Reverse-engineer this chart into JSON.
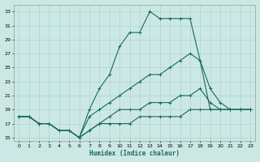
{
  "xlabel": "Humidex (Indice chaleur)",
  "bg_color": "#cce8e4",
  "line_color": "#1a6b5a",
  "grid_color": "#a8d8d0",
  "xlim": [
    -0.5,
    23.5
  ],
  "ylim": [
    14.5,
    34
  ],
  "yticks": [
    15,
    17,
    19,
    21,
    23,
    25,
    27,
    29,
    31,
    33
  ],
  "xticks": [
    0,
    1,
    2,
    3,
    4,
    5,
    6,
    7,
    8,
    9,
    10,
    11,
    12,
    13,
    14,
    15,
    16,
    17,
    18,
    19,
    20,
    21,
    22,
    23
  ],
  "lines": [
    {
      "x": [
        0,
        1,
        2,
        3,
        4,
        5,
        6,
        7,
        8,
        9,
        10,
        11,
        12,
        13,
        14,
        15,
        16,
        17,
        18,
        19,
        20,
        21,
        22,
        23
      ],
      "y": [
        18,
        18,
        17,
        17,
        16,
        16,
        15,
        19,
        22,
        24,
        28,
        30,
        30,
        33,
        32,
        32,
        32,
        32,
        26,
        19,
        19,
        19,
        19,
        19
      ]
    },
    {
      "x": [
        0,
        1,
        2,
        3,
        4,
        5,
        6,
        7,
        8,
        9,
        10,
        11,
        12,
        13,
        14,
        15,
        16,
        17,
        18,
        19,
        20,
        21,
        22,
        23
      ],
      "y": [
        18,
        18,
        17,
        17,
        16,
        16,
        15,
        18,
        19,
        20,
        21,
        22,
        23,
        24,
        24,
        25,
        26,
        27,
        26,
        22,
        20,
        19,
        19,
        19
      ]
    },
    {
      "x": [
        0,
        1,
        2,
        3,
        4,
        5,
        6,
        7,
        8,
        9,
        10,
        11,
        12,
        13,
        14,
        15,
        16,
        17,
        18,
        19,
        20,
        21,
        22,
        23
      ],
      "y": [
        18,
        18,
        17,
        17,
        16,
        16,
        15,
        16,
        17,
        18,
        19,
        19,
        19,
        20,
        20,
        20,
        21,
        21,
        22,
        20,
        19,
        19,
        19,
        19
      ]
    },
    {
      "x": [
        0,
        1,
        2,
        3,
        4,
        5,
        6,
        7,
        8,
        9,
        10,
        11,
        12,
        13,
        14,
        15,
        16,
        17,
        18,
        19,
        20,
        21,
        22,
        23
      ],
      "y": [
        18,
        18,
        17,
        17,
        16,
        16,
        15,
        16,
        17,
        17,
        17,
        17,
        18,
        18,
        18,
        18,
        18,
        19,
        19,
        19,
        19,
        19,
        19,
        19
      ]
    }
  ]
}
